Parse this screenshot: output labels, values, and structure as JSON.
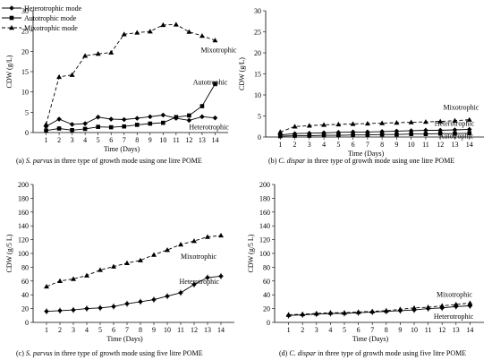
{
  "chart_data": [
    {
      "type": "line",
      "caption_prefix": "(a) ",
      "caption_species": "S. parvus",
      "caption_suffix": " in three type of growth mode using  one litre  POME",
      "xlabel": "Time  (Days)",
      "ylabel": "CDW (g/L)",
      "xlim": [
        0,
        15
      ],
      "ylim": [
        0,
        30
      ],
      "yticks": [
        0,
        5,
        10,
        15,
        20,
        25,
        30
      ],
      "x": [
        1,
        2,
        3,
        4,
        5,
        6,
        7,
        8,
        9,
        10,
        11,
        12,
        13,
        14
      ],
      "legend": [
        {
          "name": "Heterotrophic mode",
          "marker": "diamond"
        },
        {
          "name": "Autotrophic mode",
          "marker": "square"
        },
        {
          "name": "Mixotrophic mode",
          "marker": "triangle"
        }
      ],
      "series": [
        {
          "marker": "diamond",
          "dash": "solid",
          "values": [
            1.5,
            3.3,
            2.0,
            2.2,
            3.8,
            3.3,
            3.2,
            3.5,
            3.9,
            4.3,
            3.5,
            3.0,
            3.9,
            3.6
          ]
        },
        {
          "marker": "square",
          "dash": "solid",
          "values": [
            0.5,
            1.0,
            0.6,
            0.9,
            1.4,
            1.3,
            1.5,
            1.9,
            2.2,
            2.4,
            3.8,
            4.2,
            6.5,
            12.0
          ]
        },
        {
          "marker": "triangle",
          "dash": "dashed",
          "values": [
            2.0,
            13.7,
            14.2,
            18.9,
            19.4,
            19.7,
            24.2,
            24.6,
            24.9,
            26.5,
            26.6,
            24.8,
            23.8,
            22.7
          ]
        }
      ],
      "annotations": [
        {
          "text": "Mixotrophic",
          "x": 12.9,
          "y": 19.7
        },
        {
          "text": "Autotrophic",
          "x": 12.3,
          "y": 11.8
        },
        {
          "text": "Heterotrophic",
          "x": 12.0,
          "y": 0.8
        }
      ]
    },
    {
      "type": "line",
      "caption_prefix": "(b) ",
      "caption_species": "C. dispar",
      "caption_suffix": " in three type of growth mode using  one litre  POME",
      "xlabel": "Time  (Days)",
      "ylabel": "CDW (g/L)",
      "xlim": [
        0,
        15
      ],
      "ylim": [
        0,
        30
      ],
      "yticks": [
        0,
        5,
        10,
        15,
        20,
        25,
        30
      ],
      "x": [
        1,
        2,
        3,
        4,
        5,
        6,
        7,
        8,
        9,
        10,
        11,
        12,
        13,
        14
      ],
      "series": [
        {
          "marker": "diamond",
          "dash": "solid",
          "values": [
            0.5,
            0.8,
            0.9,
            1.0,
            1.1,
            1.2,
            1.2,
            1.3,
            1.4,
            1.5,
            1.6,
            1.6,
            1.7,
            1.8
          ]
        },
        {
          "marker": "square",
          "dash": "solid",
          "values": [
            0.2,
            0.3,
            0.3,
            0.4,
            0.4,
            0.5,
            0.5,
            0.6,
            0.6,
            0.7,
            0.7,
            0.8,
            0.8,
            0.9
          ]
        },
        {
          "marker": "triangle",
          "dash": "dashed",
          "values": [
            1.2,
            2.5,
            2.7,
            2.9,
            3.0,
            3.1,
            3.2,
            3.3,
            3.4,
            3.5,
            3.6,
            3.7,
            3.9,
            4.1
          ]
        }
      ],
      "annotations": [
        {
          "text": "Mixotrophic",
          "x": 12.2,
          "y": 6.5
        },
        {
          "text": "Heterotrophic",
          "x": 11.6,
          "y": 2.7
        },
        {
          "text": "Autotrophic",
          "x": 11.9,
          "y": -0.3
        }
      ]
    },
    {
      "type": "line",
      "caption_prefix": "(c) ",
      "caption_species": "S. parvus",
      "caption_suffix": " in three type of growth mode using  five litre  POME",
      "xlabel": "Time  (Days)",
      "ylabel": "CDW (g/5 L)",
      "xlim": [
        0,
        15
      ],
      "ylim": [
        0,
        200
      ],
      "yticks": [
        0,
        20,
        40,
        60,
        80,
        100,
        120,
        140,
        160,
        180,
        200
      ],
      "x": [
        1,
        2,
        3,
        4,
        5,
        6,
        7,
        8,
        9,
        10,
        11,
        12,
        13,
        14
      ],
      "series": [
        {
          "marker": "diamond",
          "dash": "solid",
          "values": [
            16,
            17,
            18,
            20,
            21,
            23,
            27,
            30,
            33,
            38,
            43,
            55,
            65,
            67
          ]
        },
        {
          "marker": "triangle",
          "dash": "dashed",
          "values": [
            52,
            60,
            63,
            68,
            76,
            81,
            86,
            90,
            98,
            105,
            113,
            118,
            124,
            126
          ]
        }
      ],
      "annotations": [
        {
          "text": "Mixotrophic",
          "x": 11.0,
          "y": 92
        },
        {
          "text": "Heterotrophic",
          "x": 10.9,
          "y": 56
        }
      ]
    },
    {
      "type": "line",
      "caption_prefix": "(d) ",
      "caption_species": "C. dispar",
      "caption_suffix": " in three type of growth mode using five litre  POME",
      "xlabel": "Time  (Days)",
      "ylabel": "CDW (g/5 L)",
      "xlim": [
        0,
        15
      ],
      "ylim": [
        0,
        200
      ],
      "yticks": [
        0,
        20,
        40,
        60,
        80,
        100,
        120,
        140,
        160,
        180,
        200
      ],
      "x": [
        1,
        2,
        3,
        4,
        5,
        6,
        7,
        8,
        9,
        10,
        11,
        12,
        13,
        14
      ],
      "series": [
        {
          "marker": "diamond",
          "dash": "solid",
          "values": [
            10,
            11,
            12,
            13,
            13,
            14,
            15,
            16,
            17,
            18,
            20,
            21,
            23,
            24
          ]
        },
        {
          "marker": "triangle",
          "dash": "dashed",
          "values": [
            11,
            12,
            13,
            14,
            14,
            15,
            16,
            17,
            19,
            21,
            22,
            24,
            26,
            28
          ]
        }
      ],
      "annotations": [
        {
          "text": "Mixotrophic",
          "x": 11.6,
          "y": 37
        },
        {
          "text": "Heterotrophic",
          "x": 11.4,
          "y": 5
        }
      ]
    }
  ]
}
